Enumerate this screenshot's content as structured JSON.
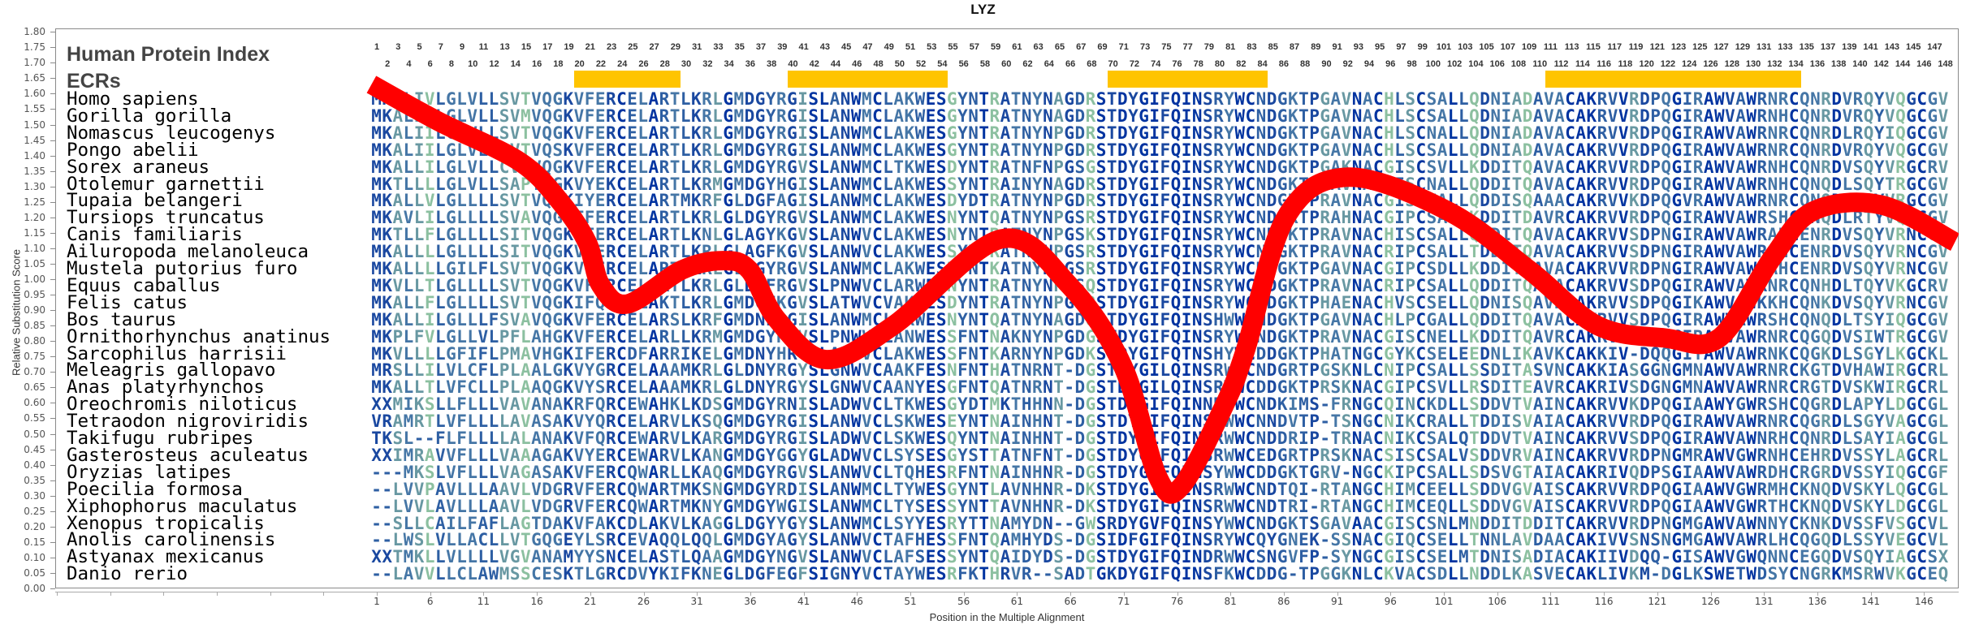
{
  "title": "LYZ",
  "header": {
    "index_label": "Human Protein Index",
    "ecr_label": "ECRs"
  },
  "colors": {
    "curve": "#ff0000",
    "ecr": "#ffc400",
    "conservation_scale": [
      "#0033a0",
      "#1a48a0",
      "#2e5fa3",
      "#4576a6",
      "#6898a2",
      "#8cc0a0"
    ]
  },
  "ecrs": [
    {
      "start": 20,
      "end": 29
    },
    {
      "start": 40,
      "end": 54
    },
    {
      "start": 70,
      "end": 84
    },
    {
      "start": 111,
      "end": 134
    }
  ],
  "human_index": {
    "start": 1,
    "end": 148
  },
  "alignment": [
    {
      "species": "Homo sapiens",
      "seq": "MKALIVLGLVLLSVTVQGKVFERCELARTLKRLGMDGYRGISLANWMCLAKWESGYNTRATNYNAGDRSTDYGIFQINSRYWCNDGKTPGAVNACHLSCSALLQDNIADAVACAKRVVRDPQGIRAWVAWRNRCQNRDVRQYVQGCGV"
    },
    {
      "species": "Gorilla gorilla",
      "seq": "MKALIVLGLVLLSVMVQGKVFERCELARTLKRLGMDGYRGISLANWMCLAKWESGYNTRATNYNAGDRSTDYGIFQINSRYWCNDGKTPGAVNACHLSCSALLQDNIADAVACAKRVVRDPQGIRAWVAWRNHCQNRDVRQYVQGCGV"
    },
    {
      "species": "Nomascus leucogenys",
      "seq": "MKALIILGLVLLSVTVQGKVFERCELARTLKRLGMDGYRGISLANWMCLAKWESGYNTRATNYNPGDRSTDYGIFQINSRYWCNDGKTPGAVNACHLSCNALLQDNIADAVACAKRVVRDPQGIRAWVAWRNRCQNRDLRQYIQGCGV"
    },
    {
      "species": "Pongo abelii",
      "seq": "MKALIILGLVLLSVTVQSKVFERCELARTLKRLGMDGYRGISLANWMCLAKWESGYNTRATNYNPGDRSTDYGIFQINSRYWCNDGKTPGAVNACHLSCSALLQDNIADAVACAKRVVRDPQGIRAWVAWRNRCQNRDVRQYVQGCGV"
    },
    {
      "species": "Sorex araneus",
      "seq": "MKALLILGLVLLCVTVQGKVFERCELARTLKRLGMDGYRGVSLANWMCLTKWESDYNTRATNFNPGSGSTDYGIFQINSRYWCNDGKTPGAKNACGISCSVLLKDDITQAVACAKRVVRDPQGIRAWVAWRNHCQNRDVSQYVRGCRV"
    },
    {
      "species": "Otolemur garnettii",
      "seq": "MKTLLLLGLVLLSAPTQGKVYEKCELARTLKRMGMDGYHGISLANWMCLAKWESSYNTRAINYNAGDRSTDYGIFQINSRYWCNDGKTPRAVNACGISCNALLQDDITQAVACAKRVVRDPQGIRAWVAWRNHCQNQDLSQYTRGCGV"
    },
    {
      "species": "Tupaia belangeri",
      "seq": "MKALLVLGLLLLSVTVQGKIYERCELARTMKRFGLDGFAGISLANWMCLAKWESDYDTRATNYNPGDRSTDYGIFQINSRYWCNDGKTPRAVNACGISCNALLQDDISQAAACAKRVVKDPQGVRAWVAWRNRCQNQDVSQYVRGCGV"
    },
    {
      "species": "Tursiops truncatus",
      "seq": "MKAVLILGLLLLSVAVQGKTFERCELARTLKRLGLDGYRGVSLANWMCLAKWESNYNTQATNYNPGSRSTDYGIFQINSRYWCNDGKTPRAHNACGIPCSALLKDDITDAVRCAKRVVRDPQGIRAWVAWRSHCQNQDLRTYVQGCGV"
    },
    {
      "species": "Canis familiaris",
      "seq": "MKTLLFLGLLLLSITVQGKIFERCELARTLKNLGLAGYKGVSLANWVCLAKWESNYNTRATNYNPGSKSTDYGIFQINSRYWCNDGKTPRAVNACHISCSALLQDDITQAVACAKRVVSDPNGIRAWVAWRAHCENRDVSQYVRNCGV"
    },
    {
      "species": "Ailuropoda melanoleuca",
      "seq": "MKALLLLGLLLLSITVQGKVFERCELARTLKRLGLAGFKGVSLANWVCLAKWESSYNTRATNYNPGSRSTDYGIFQINSRYWCNDGKTPRAVNACRIPCSALLTDDITQAVACAKRVVSDPNGIRAWVAWRAHCENRDVSQYVRNCGV"
    },
    {
      "species": "Mustela putorius furo",
      "seq": "MKALLLLGILFLSVTVQGKVFERCELARTLKRLGLGGYRGVSLANWMCLAKWESNYNTKATNYNPGSRSTDYGIFQINSRYWCNDGKTPGAVNACGIPCSDLLKDDITQAVACAKRVVRDPNGIRAWVAWKAHCENRDVSQYVRNCGV"
    },
    {
      "species": "Equus caballus",
      "seq": "MKVLLTLGLLLLSVTVQGKVFERCELARTLKRLGLDGFRGVSLPNWVCLARWESNYNTRATNYNPGSQSTDYGIFQINSRYWCNDGKTPRAVNACRIPCSALLQDDITQAVACAKRVVSDPQGIRAWVAWRNRCQNHDLTQYVKGCRV"
    },
    {
      "species": "Felis catus",
      "seq": "MKALLFLGLLLLSVTVQGKIFQRCELAKTLKRLGMDGFKGVSLATWVCVAKWESDYNTRATNYNPGSRSTDYGIFQINSRYWCNDGKTPHAENACHVSCSELLQDNISQAVKCAKRVVSDPQGIKAWVAWKKHCQNKDVSQYVRNCGV"
    },
    {
      "species": "Bos taurus",
      "seq": "MKALLILGLLLFSVAVQGKVFERCELARSLKRFGMDNFRGISLANWMCLARWESNYNTQATNYNAGDQSTDYGIFQINSHWWCNDGKTPGAVNACHLPCGALLQDDITQAVACAKRVVSDPQGIRAWVAWRSHCQNQDLTSYIQGCGV"
    },
    {
      "species": "Ornithorhynchus anatinus",
      "seq": "MKPLFVLGLLVLPFLAHGKVFERCELARLLKRMGMDGYRGVSLPNWVCLANWESSFNTNAKNYNPGDGSTDYGIFQINSRYWCNDGKTPRAVNACGISCNELLKDDITQAVRCAKRVVEDPQGIRAWVAWRNRCQGQDVSIWTRGCGV"
    },
    {
      "species": "Sarcophilus harrisii",
      "seq": "MKVLLLLGFIFLPMAVHGKIFERCDFARRIKELGMDNYHRVSLANWVCLAKWESSFNTKARNYNPGDKSTDYGIFQTNSHYWCDDGKTPHATNGCGYKCSELEEDNLIKAVKCAKKIV-DQQGITAWVAWRNKCQGKDLSGYLKGCKL"
    },
    {
      "species": "Meleagris gallopavo",
      "seq": "MRSLLILVLCFLPLAALGKVYGRCELAAAMKRLGLDNYRGYSLGNWVCAAKFESNFNTHATNRNT-DGSTDYGILQINSRWWCNDGRTPGSKNLCNIPCSALLSSDITASVNCAKKIASGGNGMNAWVAWRNRCKGTDVHAWIRGCRL"
    },
    {
      "species": "Anas platyrhynchos",
      "seq": "MKALLTLVFCLLPLAAQGKVYSRCELAAAMKRLGLDNYRGYSLGNWVCAANYESGFNTQATNRNT-DGSTDYGILQINSRWWCDDGKTPRSKNACGIPCSVLLRSDITEAVRCAKRIVSDGNGMNAWVAWRNRCRGTDVSKWIRGCRL"
    },
    {
      "species": "Oreochromis niloticus",
      "seq": "XXMIKSLLFLLLVAVANAKRFQRCEWAHKLKDSGMDGYRNISLADWVCLTKWESGYDTMKTHHNN-DGSTDFGIFQINNRWWCNDKIMS-FRNGCQINCKDLLSDDVTVAINCAKRVVKDPQGIAAWYGWRSHCQGRDLAPYLDGCGL"
    },
    {
      "species": "Tetraodon nigroviridis",
      "seq": "VRAMRTLVFLLLLAVASAKVYQRCELARVLKSQGMDGYRGISLANWVCLSKWESEYNTNAINHNT-DGSTDYGIFQINSRWWCNNDVTP-TSNGCNIKCRALLTDDISVAIACAKRVVRDPQGIRAWVAWRNRCQGRDLSGYVAGCGL"
    },
    {
      "species": "Takifugu rubripes",
      "seq": "TKSL--FLFLLLLALANAKVFQRCEWARVLKARGMDGYRGISLADWVCLSKWESQYNTNAINHNT-DGSTDYGIFQINSRWWCNDDRIP-TRNACNIKCSALQTDDVTVAINCAKRVVSDPQGIRAWVAWNRHCQNRDLSAYIAGCGL"
    },
    {
      "species": "Gasterosteus aculeatus",
      "seq": "XXIMRAVVFLLLVAAAGAKVYERCEWARVLKANGMDGYGGYGLADWVCLSYSESGYSTTATNFNT-DGSTDYGIFQINSRWWCEDGRTPRSKNACSISCSALVSDDVRVAINCAKRVVRDPNGMRAWVGWRNHCEHRDVSSYLAGCRL"
    },
    {
      "species": "Oryzias latipes",
      "seq": "---MKSLVFLLLVAGASAKVFERCQWARLLKAQGMDGYRGVSLANWVCLTQHESRFNTNAINHNR-DGSTDYGIFQINSYWWCDDGKTGRV-NGCKIPCSALLSDSVGTAIACAKRIVQDPSGIAAWVAWRDHCRGRDVSSYIQGCGF"
    },
    {
      "species": "Poecilia formosa",
      "seq": "--LVVPAVLLLAAVLVDGRVFERCQWARTMKSNGMDGYRDISLANWMCLTYWESGYNTLAVNHNR-DKSTDYGIFQINSRWWCNDTQI-RTANGCHIMCEELLSDDVGVAISCAKRVVRDPQGIAAWVGWRMHCKNQDVSKYLQGCGL"
    },
    {
      "species": "Xiphophorus maculatus",
      "seq": "--LVVLAVLLLAAVLVDGRVFERCQWARTMKNYGMDGYWGISLANWMCLTYSESSYNTTAVNHNR-DKSTDYGIFQINSRWWCNDTRI-RTANGCHIMCEQLLSDDVGVAISCAKRVVRDPQGIAAWVGWRTHCKNQDVSKYLDGCGL"
    },
    {
      "species": "Xenopus tropicalis",
      "seq": "--SLLCAILFAFLAGTDAKVFAKCDLAKVLKAGGLDGYYGYSLANWMCLSYYESRYTTNAMYDN--GWSRDYGVFQINSYWWCNDGKTSGAVAACGISCSNLMNDDITDDITCAKRVVRDPNGMGAWVAWNNYCKNKDVSSFVSGCVL"
    },
    {
      "species": "Anolis carolinensis",
      "seq": "--LWSLVLLACLLVTGQGEYLSRCEVAQQLQQLGMDGYAGYSLANWVCTAFHESSFNTQAMHYDS-DGSIDFGIFQINSRYWCQYGNEK-SSNACGIQCSELLTNNLAVDAACAKIVVSNSNGMGAWVAWRLHCQGQDLSSYVEGCVL"
    },
    {
      "species": "Astyanax mexicanus",
      "seq": "XXTMKLLVLLLLVGVANAMYYSNCELASTLQAAGMDGYNGVSLANWVCLAFSESSYNTQAIDYDS-DGSTDYGIFQINDRWWCSNGVFP-SYNGCGISCSELMTDNISADIACAKIIVDQQ-GISAWVGWQNNCEGQDVSQYIAGCSX"
    },
    {
      "species": "Danio rerio",
      "seq": "--LAVVLLCLAWMSSCESKTLGRCDVYKIFKNEGLDGFEGFSIGNYVCTAYWESRFKTHRVR--SADTGKDYGIFQINSFKWCDDG-TPGGKNLCKVACSDLLNDDLKASVECAKLIVKM-DGLKSWETWDSYCNGRKMSRWVKGCEQ"
    }
  ],
  "chart_data": {
    "type": "line",
    "title": "LYZ",
    "xlabel": "Position in the Multiple Alignment",
    "ylabel": "Relative Substitution Score",
    "ylim": [
      0,
      1.8
    ],
    "y_tick_step": 0.05,
    "x_tick_labels": [
      1,
      6,
      11,
      16,
      21,
      26,
      31,
      36,
      41,
      46,
      51,
      56,
      61,
      66,
      71,
      76,
      81,
      86,
      91,
      96,
      101,
      106,
      111,
      116,
      121,
      126,
      131,
      136,
      141,
      146
    ],
    "grid": false,
    "series": [
      {
        "x": [
          0.5,
          6.8,
          14.4,
          18.2,
          20.7,
          22.0,
          24.5,
          29.6,
          33.4,
          35.9,
          38.5,
          43.1,
          49.4,
          59.5,
          65.9,
          70.9,
          74.2,
          76.4,
          80.4,
          82.4,
          86.2,
          92.0,
          101.4,
          109.0,
          115.4,
          121.7,
          126.8,
          131.8,
          135.6,
          142.0,
          148.9
        ],
        "y": [
          1.63,
          1.51,
          1.38,
          1.25,
          1.12,
          0.98,
          0.92,
          1.03,
          1.06,
          1.03,
          0.87,
          0.74,
          0.85,
          1.13,
          0.98,
          0.72,
          0.36,
          0.33,
          0.59,
          0.77,
          1.2,
          1.33,
          1.22,
          1.03,
          0.85,
          0.81,
          0.81,
          1.07,
          1.22,
          1.24,
          1.12
        ]
      }
    ]
  }
}
